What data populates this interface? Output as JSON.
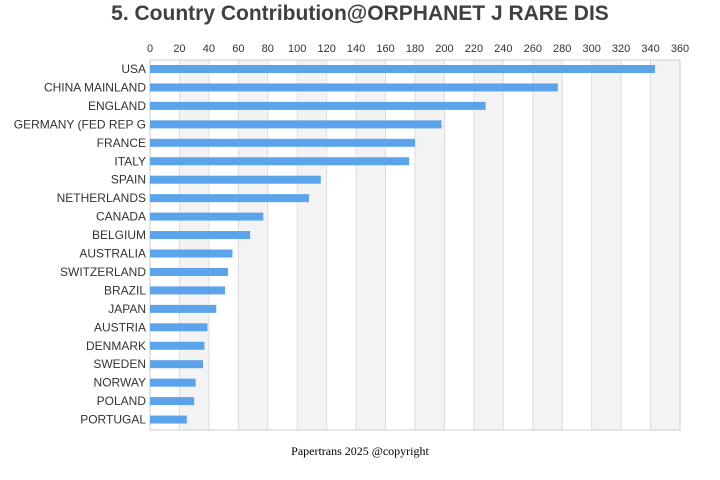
{
  "title": "5. Country Contribution@ORPHANET J RARE DIS",
  "footer": "Papertrans 2025 @copyright",
  "colors": {
    "bar": "#5ba3ea",
    "band": "#f3f3f3",
    "grid": "#dddddd",
    "frame": "#cccccc"
  },
  "chart_data": {
    "type": "bar",
    "orientation": "horizontal",
    "title": "5. Country Contribution@ORPHANET J RARE DIS",
    "xlabel": "",
    "ylabel": "",
    "xlim": [
      0,
      360
    ],
    "xticks": [
      0,
      20,
      40,
      60,
      80,
      100,
      120,
      140,
      160,
      180,
      200,
      220,
      240,
      260,
      280,
      300,
      320,
      340,
      360
    ],
    "x_axis_position": "top",
    "grid": true,
    "categories": [
      "USA",
      "CHINA MAINLAND",
      "ENGLAND",
      "GERMANY (FED REP G",
      "FRANCE",
      "ITALY",
      "SPAIN",
      "NETHERLANDS",
      "CANADA",
      "BELGIUM",
      "AUSTRALIA",
      "SWITZERLAND",
      "BRAZIL",
      "JAPAN",
      "AUSTRIA",
      "DENMARK",
      "SWEDEN",
      "NORWAY",
      "POLAND",
      "PORTUGAL"
    ],
    "values": [
      343,
      277,
      228,
      198,
      180,
      176,
      116,
      108,
      77,
      68,
      56,
      53,
      51,
      45,
      39,
      37,
      36,
      31,
      30,
      25
    ]
  }
}
